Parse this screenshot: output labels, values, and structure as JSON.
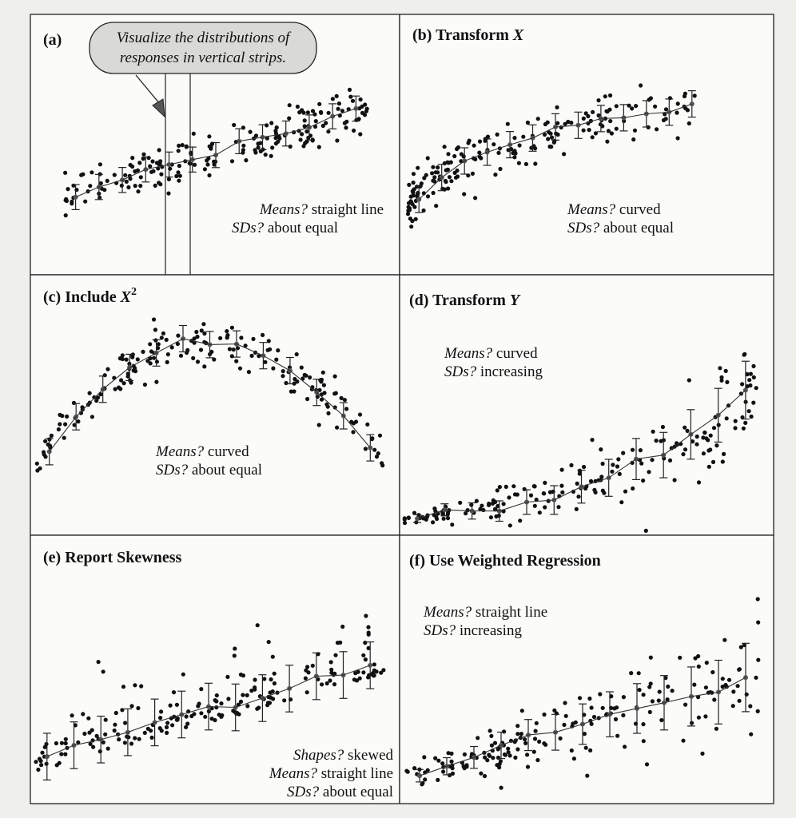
{
  "figure": {
    "callout": {
      "line1": "Visualize the distributions of",
      "line2": "responses in vertical strips."
    },
    "panels": [
      {
        "id": "a",
        "label": "(a)",
        "title": "",
        "title_var": "",
        "pattern": "linear-const",
        "notes": [
          {
            "italic": "",
            "text": "Means? straight line"
          },
          {
            "italic": "",
            "text": "SDs? about equal"
          }
        ]
      },
      {
        "id": "b",
        "label": "(b) Transform ",
        "title_var": "X",
        "pattern": "log-const",
        "notes": [
          {
            "italic": "Means?",
            "text": " curved"
          },
          {
            "italic": "SDs?",
            "text": " about equal"
          }
        ]
      },
      {
        "id": "c",
        "label": "(c) Include ",
        "title_var": "X",
        "title_sup": "2",
        "pattern": "quad-const",
        "notes": [
          {
            "italic": "Means?",
            "text": " curved"
          },
          {
            "italic": "SDs?",
            "text": " about equal"
          }
        ]
      },
      {
        "id": "d",
        "label": "(d) Transform ",
        "title_var": "Y",
        "pattern": "exp-incr",
        "notes": [
          {
            "italic": "Means?",
            "text": " curved"
          },
          {
            "italic": "SDs?",
            "text": " increasing"
          }
        ]
      },
      {
        "id": "e",
        "label": "(e) Report Skewness",
        "title_var": "",
        "pattern": "skew",
        "notes": [
          {
            "italic": "Shapes?",
            "text": " skewed"
          },
          {
            "italic": "Means?",
            "text": " straight line"
          },
          {
            "italic": "SDs?",
            "text": " about equal"
          }
        ]
      },
      {
        "id": "f",
        "label": "(f) Use Weighted Regression",
        "title_var": "",
        "pattern": "linear-incr",
        "notes": [
          {
            "italic": "Means?",
            "text": " straight line"
          },
          {
            "italic": "SDs?",
            "text": " increasing"
          }
        ]
      }
    ]
  }
}
